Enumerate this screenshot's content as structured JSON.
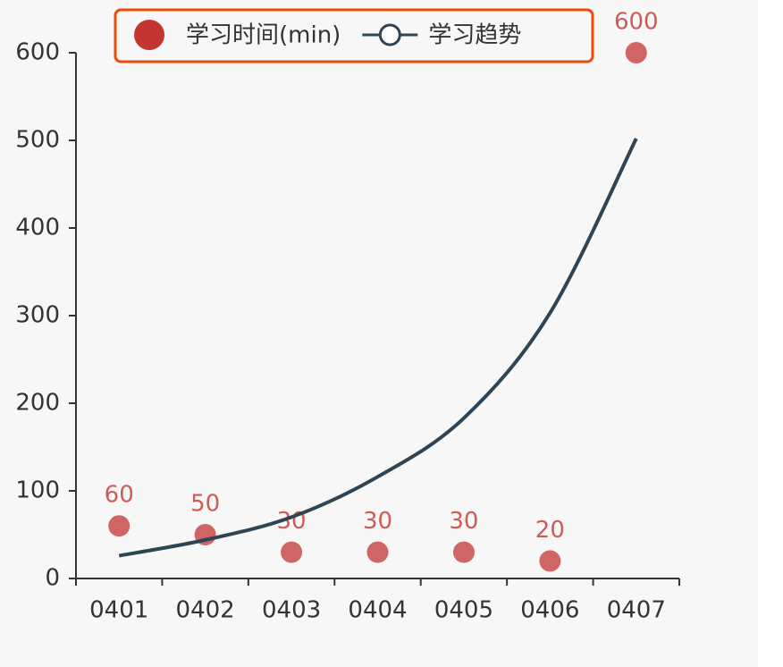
{
  "chart_data": {
    "type": "combo",
    "categories": [
      "0401",
      "0402",
      "0403",
      "0404",
      "0405",
      "0406",
      "0407"
    ],
    "series": [
      {
        "name": "学习时间(min)",
        "type": "scatter",
        "color": "#c23531",
        "values": [
          60,
          50,
          30,
          30,
          30,
          20,
          600
        ]
      },
      {
        "name": "学习趋势",
        "type": "line",
        "color": "#2f4554",
        "values": [
          26,
          44,
          70,
          116,
          183,
          303,
          502
        ]
      }
    ],
    "ylim": [
      0,
      600
    ],
    "yticks": [
      0,
      100,
      200,
      300,
      400,
      500,
      600
    ],
    "grid": false,
    "legend": "top"
  }
}
